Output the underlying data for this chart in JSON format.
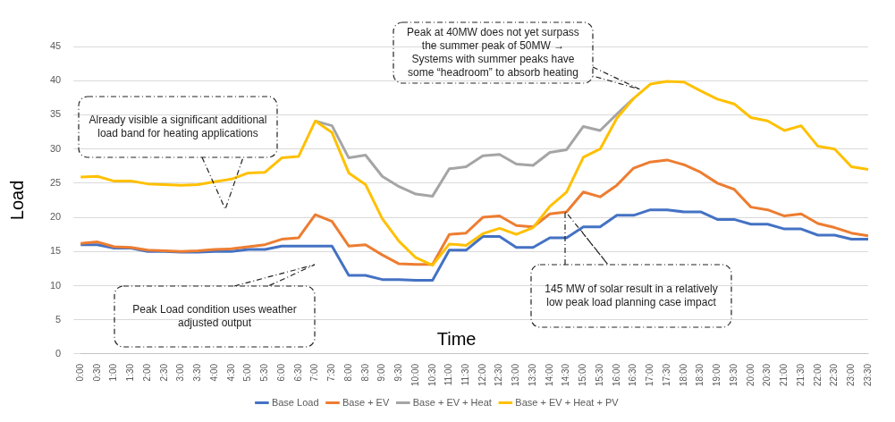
{
  "chart_data": {
    "type": "line",
    "xlabel": "Time",
    "ylabel": "Load",
    "categories": [
      "0:00",
      "0:30",
      "1:00",
      "1:30",
      "2:00",
      "2:30",
      "3:00",
      "3:30",
      "4:00",
      "4:30",
      "5:00",
      "5:30",
      "6:00",
      "6:30",
      "7:00",
      "7:30",
      "8:00",
      "8:30",
      "9:00",
      "9:30",
      "10:00",
      "10:30",
      "11:00",
      "11:30",
      "12:00",
      "12:30",
      "13:00",
      "13:30",
      "14:00",
      "14:30",
      "15:00",
      "15:30",
      "16:00",
      "16:30",
      "17:00",
      "17:30",
      "18:00",
      "18:30",
      "19:00",
      "19:30",
      "20:00",
      "20:30",
      "21:00",
      "21:30",
      "22:00",
      "22:30",
      "23:00",
      "23:30"
    ],
    "series": [
      {
        "name": "Base Load",
        "color": "#4472c4",
        "values": [
          16.0,
          16.0,
          15.5,
          15.5,
          15.0,
          15.0,
          14.9,
          14.9,
          15.0,
          15.0,
          15.3,
          15.3,
          15.8,
          15.8,
          15.8,
          15.8,
          11.5,
          11.5,
          10.9,
          10.9,
          10.8,
          10.8,
          15.2,
          15.2,
          17.2,
          17.2,
          15.6,
          15.6,
          17.0,
          17.0,
          18.6,
          18.6,
          20.3,
          20.3,
          21.1,
          21.1,
          20.8,
          20.8,
          19.7,
          19.7,
          19.0,
          19.0,
          18.3,
          18.3,
          17.4,
          17.4,
          16.8,
          16.8
        ]
      },
      {
        "name": "Base + EV",
        "color": "#ed7d31",
        "values": [
          16.2,
          16.4,
          15.7,
          15.6,
          15.2,
          15.1,
          15.0,
          15.1,
          15.3,
          15.4,
          15.7,
          16.0,
          16.8,
          17.0,
          20.4,
          19.4,
          15.8,
          16.0,
          14.5,
          13.2,
          13.1,
          13.1,
          17.5,
          17.7,
          20.0,
          20.2,
          18.8,
          18.6,
          20.5,
          20.8,
          23.7,
          23.0,
          24.7,
          27.2,
          28.1,
          28.4,
          27.7,
          26.6,
          25.0,
          24.1,
          21.5,
          21.1,
          20.2,
          20.5,
          19.1,
          18.5,
          17.7,
          17.3
        ]
      },
      {
        "name": "Base + EV + Heat",
        "color": "#a5a5a5",
        "values": [
          null,
          null,
          null,
          null,
          null,
          null,
          null,
          null,
          null,
          null,
          null,
          null,
          null,
          null,
          34.1,
          33.4,
          28.7,
          29.1,
          26.0,
          24.5,
          23.4,
          23.1,
          27.1,
          27.4,
          29.0,
          29.2,
          27.8,
          27.6,
          29.5,
          29.9,
          33.3,
          32.7,
          35.1,
          37.4,
          null,
          null,
          null,
          null,
          null,
          null,
          null,
          null,
          null,
          null,
          null,
          null,
          null,
          null
        ]
      },
      {
        "name": "Base + EV + Heat + PV",
        "color": "#ffc000",
        "values": [
          25.9,
          26.0,
          25.3,
          25.3,
          24.9,
          24.8,
          24.7,
          24.8,
          25.2,
          25.6,
          26.5,
          26.6,
          28.7,
          28.9,
          34.1,
          32.4,
          26.5,
          24.8,
          19.8,
          16.5,
          14.1,
          13.0,
          16.1,
          15.9,
          17.6,
          18.4,
          17.5,
          18.5,
          21.6,
          23.7,
          28.8,
          30.0,
          34.5,
          37.4,
          39.5,
          39.9,
          39.8,
          38.5,
          37.3,
          36.6,
          34.6,
          34.1,
          32.7,
          33.4,
          30.4,
          30.0,
          27.4,
          27.0
        ]
      }
    ],
    "ylim": [
      0,
      45
    ],
    "yticks": [
      0,
      5,
      10,
      15,
      20,
      25,
      30,
      35,
      40,
      45
    ],
    "grid": "y",
    "legend": "bottom",
    "marker": "none",
    "line_style": "solid",
    "annotations": [
      "Already visible a significant additional load band for heating applications",
      "Peak Load condition uses weather adjusted output",
      "Peak at 40MW does not yet surpass the summer peak of 50MW → Systems with summer peaks have some “headroom” to absorb heating",
      "145 MW of solar result in a relatively low peak load planning case impact"
    ]
  }
}
